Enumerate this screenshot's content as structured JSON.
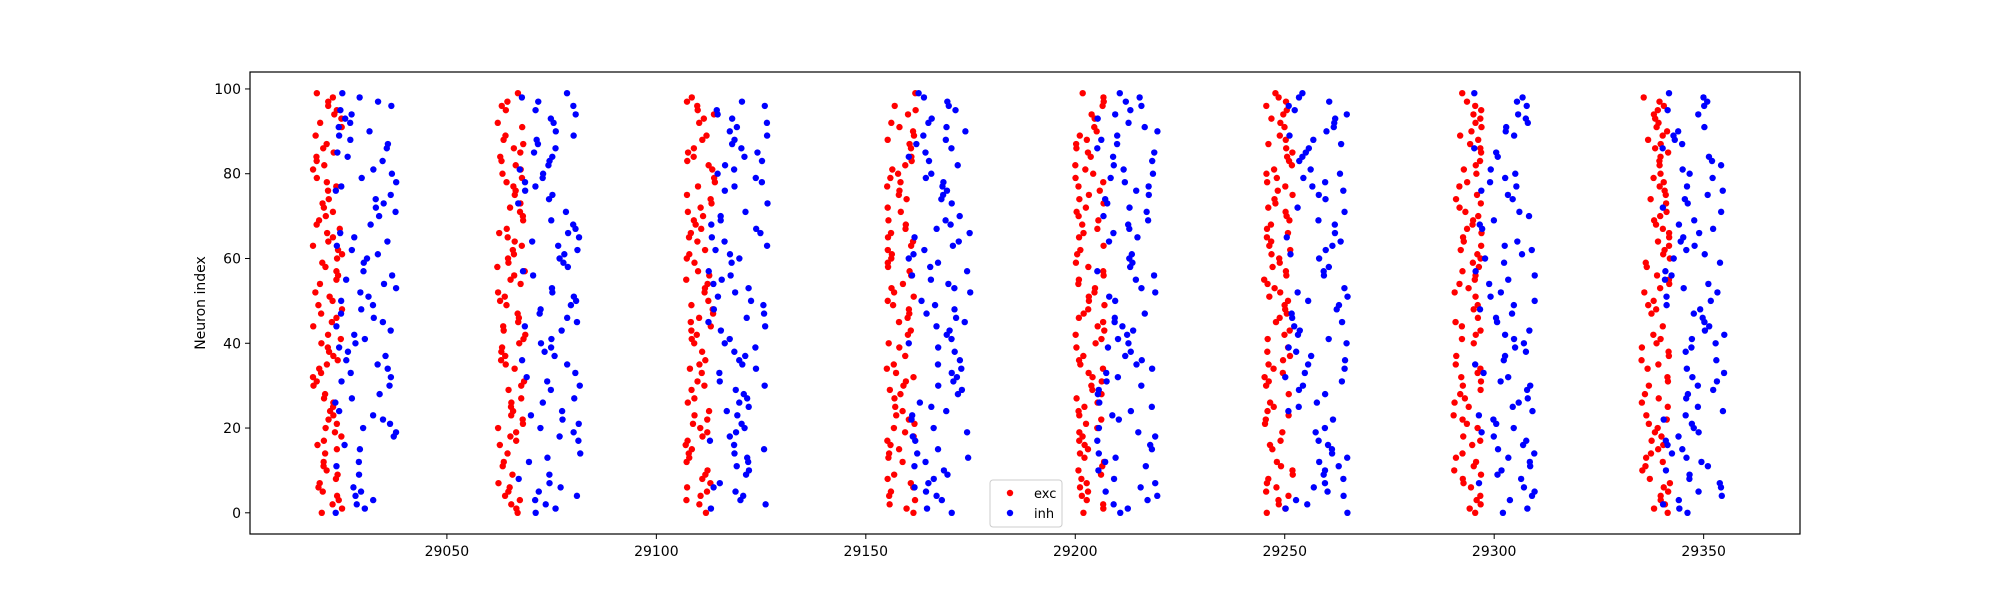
{
  "chart_data": {
    "type": "scatter",
    "title": "",
    "xlabel": "",
    "ylabel": "Neuron index",
    "xlim": [
      29003,
      29373
    ],
    "ylim": [
      -5,
      104
    ],
    "xticks": [
      29050,
      29100,
      29150,
      29200,
      29250,
      29300,
      29350
    ],
    "yticks": [
      0,
      20,
      40,
      60,
      80,
      100
    ],
    "grid": false,
    "legend": {
      "position": "lower center",
      "entries": [
        "exc",
        "inh"
      ]
    },
    "burst_centers": [
      29021,
      29065,
      29110,
      29158,
      29203,
      29248,
      29293,
      29338
    ],
    "series": [
      {
        "name": "exc",
        "color": "#ff0000",
        "neuron_range": [
          0,
          99
        ],
        "offset_from_burst_center": [
          -3,
          4
        ]
      },
      {
        "name": "inh",
        "color": "#0000ff",
        "neuron_range": [
          0,
          99
        ],
        "offset_from_burst_center": [
          2,
          17
        ]
      }
    ]
  }
}
